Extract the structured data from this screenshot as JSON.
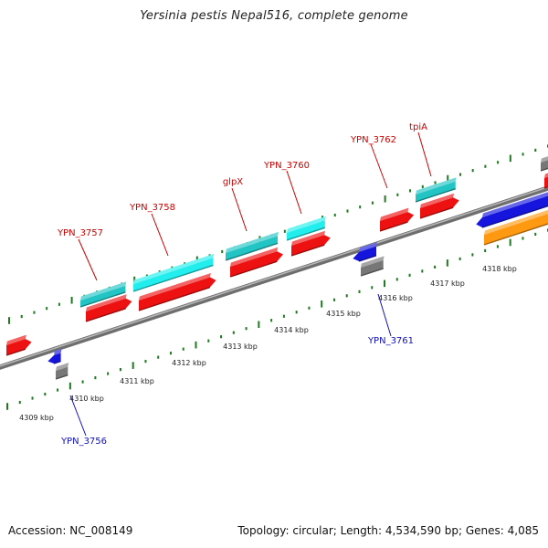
{
  "title": "Yersinia pestis Nepal516, complete genome",
  "footer": {
    "accession": "Accession: NC_008149",
    "summary": "Topology: circular; Length: 4,534,590 bp; Genes: 4,085"
  },
  "colors": {
    "backbone": "#8c8c8c",
    "ruler_tick": "#1f7a1f",
    "top_label": "#cc0000",
    "bottom_label": "#1010c0",
    "red": "#ee1111",
    "teal": "#22c4c4",
    "cyan": "#22eeee",
    "blue": "#1515dd",
    "gray": "#777777",
    "orange": "#ff9911"
  },
  "ruler_labels": [
    "4309 kbp",
    "4310 kbp",
    "4311 kbp",
    "4312 kbp",
    "4313 kbp",
    "4314 kbp",
    "4315 kbp",
    "4316 kbp",
    "4317 kbp",
    "4318 kbp"
  ],
  "top_labels": [
    "YPN_3757",
    "YPN_3758",
    "glpX",
    "YPN_3760",
    "YPN_3762",
    "tpiA"
  ],
  "bottom_labels": [
    "YPN_3756",
    "YPN_3761"
  ]
}
